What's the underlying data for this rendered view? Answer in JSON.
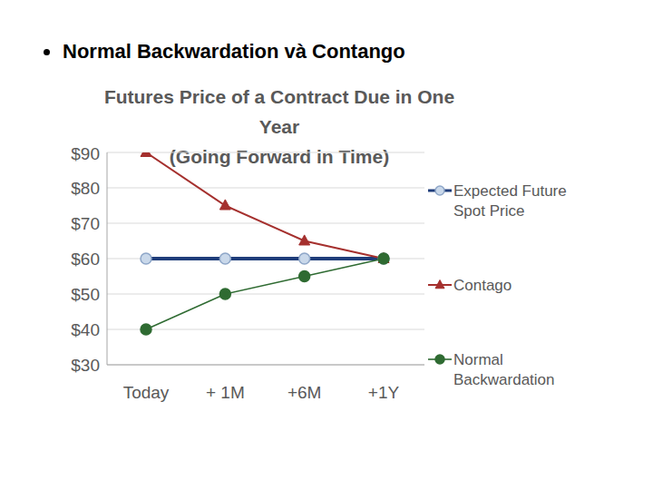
{
  "heading": "Normal Backwardation và Contango",
  "chart_data": {
    "type": "line",
    "title": "Futures Price of a Contract Due in One Year",
    "subtitle": "(Going Forward in Time)",
    "categories": [
      "Today",
      "+ 1M",
      "+6M",
      "+1Y"
    ],
    "series": [
      {
        "name": "Expected Future Spot Price",
        "color": "#1f3d7a",
        "marker": "circle",
        "values": [
          60,
          60,
          60,
          60
        ]
      },
      {
        "name": "Contago",
        "color": "#a5302e",
        "marker": "triangle",
        "values": [
          90,
          75,
          65,
          60
        ]
      },
      {
        "name": "Normal Backwardation",
        "color": "#2f6b32",
        "marker": "circle",
        "values": [
          40,
          50,
          55,
          60
        ]
      }
    ],
    "ylim": [
      30,
      90
    ],
    "yticks": [
      {
        "value": 30,
        "label": "$30"
      },
      {
        "value": 40,
        "label": "$40"
      },
      {
        "value": 50,
        "label": "$50"
      },
      {
        "value": 60,
        "label": "$60"
      },
      {
        "value": 70,
        "label": "$70"
      },
      {
        "value": 80,
        "label": "$80"
      },
      {
        "value": 90,
        "label": "$90"
      }
    ],
    "grid": true,
    "legend": "right"
  }
}
